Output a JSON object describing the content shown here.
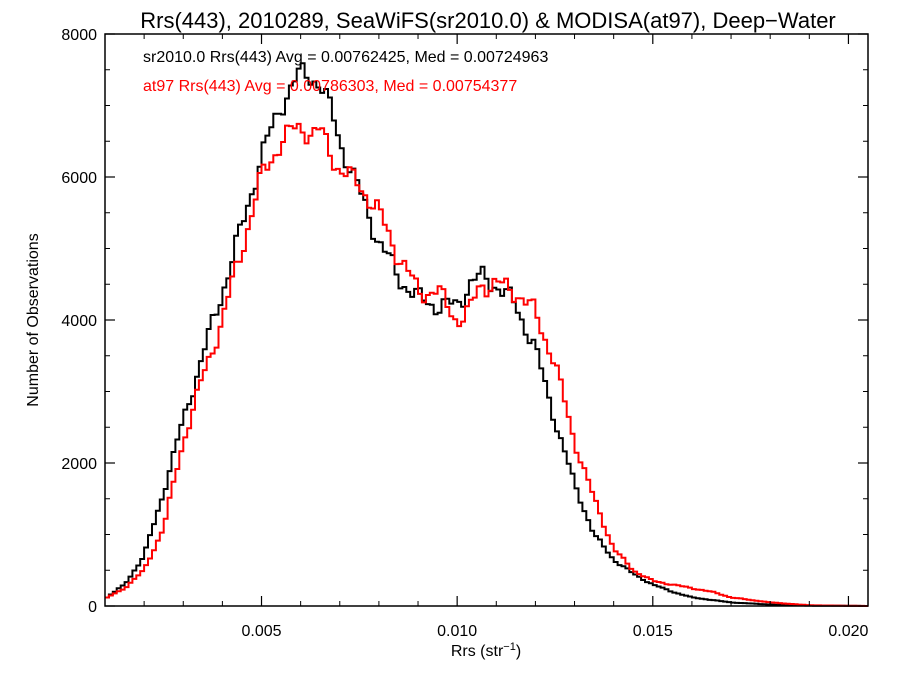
{
  "chart_data": {
    "type": "histogram-step",
    "title": "Rrs(443), 2010289, SeaWiFS(sr2010.0) & MODISA(at97), Deep−Water",
    "xlabel": "Rrs (str",
    "xlabel_sup": "−1",
    "xlabel_close": ")",
    "ylabel": "Number of Observations",
    "xlim": [
      0.001,
      0.0205
    ],
    "ylim": [
      0,
      8000
    ],
    "x_ticks": [
      0.005,
      0.01,
      0.015,
      0.02
    ],
    "x_tick_labels": [
      "0.005",
      "0.010",
      "0.015",
      "0.020"
    ],
    "y_ticks": [
      0,
      2000,
      4000,
      6000,
      8000
    ],
    "y_tick_labels": [
      "0",
      "2000",
      "4000",
      "6000",
      "8000"
    ],
    "grid": false,
    "legend_position": "top-left",
    "series": [
      {
        "name": "sr2010.0",
        "color": "#000000",
        "annotation": "sr2010.0 Rrs(443) Avg = 0.00762425, Med = 0.00724963",
        "x": [
          0.001,
          0.0015,
          0.002,
          0.0025,
          0.003,
          0.0035,
          0.004,
          0.0045,
          0.005,
          0.0055,
          0.0058,
          0.006,
          0.0063,
          0.0065,
          0.0068,
          0.007,
          0.0075,
          0.008,
          0.0085,
          0.009,
          0.0095,
          0.01,
          0.0103,
          0.0106,
          0.011,
          0.0115,
          0.012,
          0.0125,
          0.013,
          0.0135,
          0.014,
          0.0145,
          0.015,
          0.0155,
          0.016,
          0.017,
          0.018,
          0.019,
          0.0205
        ],
        "y": [
          100,
          300,
          700,
          1600,
          2600,
          3500,
          4400,
          5300,
          6300,
          7000,
          7300,
          7450,
          7400,
          7300,
          6900,
          6500,
          5800,
          5100,
          4600,
          4300,
          4200,
          4200,
          4500,
          4600,
          4500,
          4200,
          3600,
          2600,
          1700,
          1000,
          650,
          450,
          300,
          200,
          120,
          50,
          20,
          5,
          0
        ]
      },
      {
        "name": "at97",
        "color": "#ff0000",
        "annotation": "at97 Rrs(443) Avg = 0.00786303, Med = 0.00754377",
        "x": [
          0.001,
          0.0015,
          0.002,
          0.0025,
          0.003,
          0.0035,
          0.004,
          0.0045,
          0.005,
          0.0055,
          0.0058,
          0.006,
          0.0063,
          0.0065,
          0.0068,
          0.007,
          0.0075,
          0.008,
          0.0085,
          0.009,
          0.0095,
          0.01,
          0.0103,
          0.0106,
          0.011,
          0.0115,
          0.012,
          0.0125,
          0.013,
          0.0135,
          0.014,
          0.0145,
          0.015,
          0.0155,
          0.016,
          0.0165,
          0.017,
          0.018,
          0.019,
          0.0205
        ],
        "y": [
          100,
          250,
          500,
          1100,
          2300,
          3200,
          4000,
          5000,
          6000,
          6500,
          6650,
          6700,
          6600,
          6650,
          6300,
          6100,
          5900,
          5500,
          4900,
          4400,
          4400,
          4000,
          4100,
          4500,
          4500,
          4400,
          4100,
          3400,
          2300,
          1500,
          800,
          500,
          350,
          300,
          250,
          200,
          120,
          50,
          10,
          0
        ]
      }
    ]
  }
}
